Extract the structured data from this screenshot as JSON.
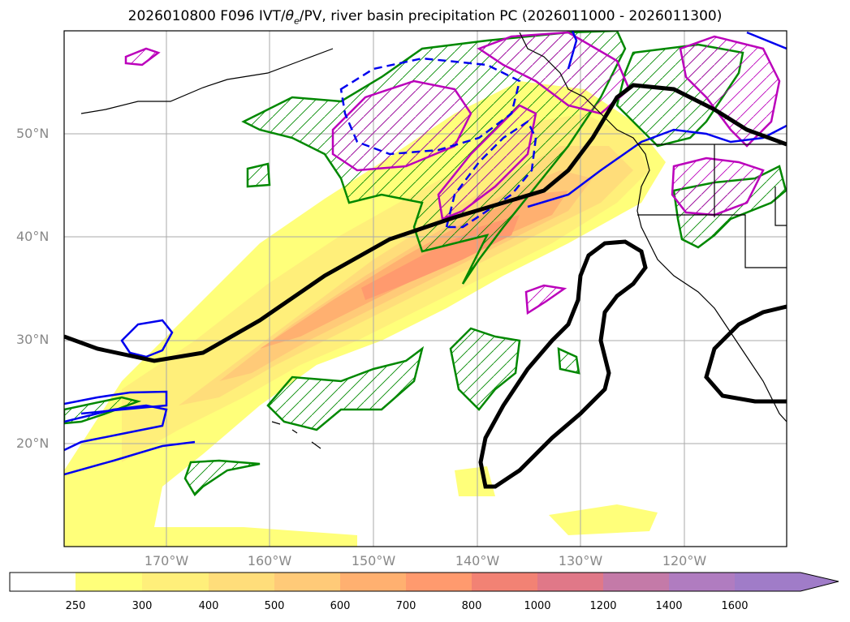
{
  "title_pre": "2026010800 F096 IVT/",
  "title_theta": "θ",
  "title_sub": "e",
  "title_post": "/PV, river basin precipitation PC (2026011000 - 2026011300)",
  "lat_labels": [
    "50°N",
    "40°N",
    "30°N",
    "20°N"
  ],
  "lon_labels": [
    "170°W",
    "160°W",
    "150°W",
    "140°W",
    "130°W",
    "120°W"
  ],
  "colorbar": {
    "ticks": [
      "250",
      "300",
      "400",
      "500",
      "600",
      "700",
      "800",
      "1000",
      "1200",
      "1400",
      "1600"
    ],
    "colors": [
      "#ffffff",
      "#ffff7a",
      "#ffef7a",
      "#ffdd7a",
      "#ffca78",
      "#ffb070",
      "#ff9a6e",
      "#f28274",
      "#e07888",
      "#c47aa8",
      "#b07cc0",
      "#a07cc8"
    ]
  },
  "map_features": {
    "ivt_shading": "IVT",
    "theta_e_contour": "θe",
    "pv_contour": "PV",
    "precip_hatch": "precipitation"
  },
  "colors": {
    "pv_magenta": "#bb00bb",
    "hatch_green": "#008800",
    "theta_blue": "#0000ee",
    "coast": "#000000"
  }
}
